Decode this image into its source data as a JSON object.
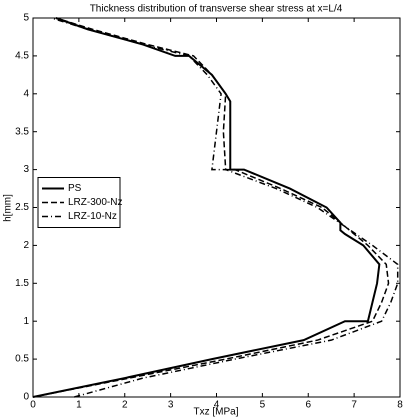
{
  "chart_data": {
    "type": "line",
    "title": "Thickness distribution of transverse shear stress at x=L/4",
    "x_label": "Txz [MPa]",
    "y_label": "h[mm]",
    "xlim": [
      0,
      8
    ],
    "ylim": [
      0,
      5
    ],
    "xticks": [
      0,
      1,
      2,
      3,
      4,
      5,
      6,
      7,
      8
    ],
    "yticks": [
      0,
      0.5,
      1,
      1.5,
      2,
      2.5,
      3,
      3.5,
      4,
      4.5,
      5
    ],
    "grid": false,
    "legend": "center left",
    "series": [
      {
        "name": "PS",
        "color": "#000000",
        "dash": "solid",
        "x": [
          0,
          2.0,
          3.9,
          5.9,
          6.8,
          7.3,
          7.4,
          7.5,
          7.55,
          7.2,
          6.8,
          6.7,
          6.7,
          6.4,
          5.6,
          4.6,
          4.3,
          4.3,
          4.3,
          4.2,
          3.9,
          3.4,
          3.1,
          2.4,
          1.2,
          0.5
        ],
        "y": [
          0,
          0.25,
          0.5,
          0.75,
          1.0,
          1.0,
          1.25,
          1.5,
          1.75,
          2.0,
          2.15,
          2.2,
          2.3,
          2.5,
          2.75,
          3.0,
          3.0,
          3.5,
          3.9,
          4.0,
          4.25,
          4.5,
          4.5,
          4.65,
          4.85,
          5.0
        ]
      },
      {
        "name": "LRZ-300-Nz",
        "color": "#000000",
        "dash": "dashed",
        "x": [
          0,
          2.1,
          4.2,
          6.2,
          7.4,
          7.6,
          7.75,
          7.7,
          7.3,
          6.8,
          6.3,
          5.4,
          4.4,
          4.2,
          4.15,
          4.2,
          3.9,
          3.5,
          2.5,
          1.3,
          0.5
        ],
        "y": [
          0,
          0.25,
          0.5,
          0.75,
          1.0,
          1.25,
          1.5,
          1.75,
          2.0,
          2.25,
          2.5,
          2.75,
          3.0,
          3.0,
          3.5,
          4.0,
          4.25,
          4.5,
          4.65,
          4.85,
          5.0
        ]
      },
      {
        "name": "LRZ-10-Nz",
        "color": "#000000",
        "dash": "dashdot",
        "x": [
          0.9,
          2.4,
          4.4,
          6.5,
          7.6,
          7.8,
          7.95,
          7.95,
          7.4,
          6.8,
          6.2,
          5.3,
          4.2,
          3.9,
          4.0,
          4.1,
          3.8,
          3.4,
          2.4,
          1.2,
          0.4
        ],
        "y": [
          0,
          0.25,
          0.5,
          0.75,
          1.0,
          1.25,
          1.5,
          1.75,
          2.0,
          2.25,
          2.5,
          2.75,
          3.0,
          3.0,
          3.5,
          4.0,
          4.25,
          4.5,
          4.65,
          4.85,
          5.0
        ]
      }
    ]
  }
}
